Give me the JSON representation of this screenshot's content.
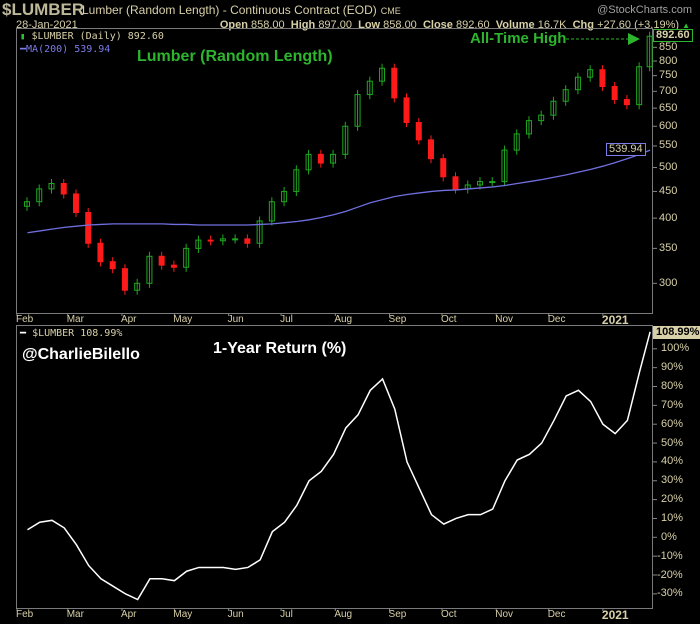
{
  "header": {
    "ticker": "$LUMBER",
    "name": "Lumber (Random Length) - Continuous Contract (EOD)",
    "exchange": "CME",
    "logo": "@StockCharts.com",
    "date": "28-Jan-2021",
    "open_label": "Open",
    "open": "858.00",
    "high_label": "High",
    "high": "897.00",
    "low_label": "Low",
    "low": "858.00",
    "close_label": "Close",
    "close": "892.60",
    "volume_label": "Volume",
    "volume": "16.7K",
    "chg_label": "Chg",
    "chg": "+27.60 (+3.19%)",
    "chg_icon": "triangle-up"
  },
  "upper": {
    "legend_price": "$LUMBER (Daily) 892.60",
    "legend_ma": "MA(200) 539.94",
    "title": "Lumber (Random Length)",
    "annotation": "All-Time High",
    "last_price_tag": "892.60",
    "ma_tag": "539.94"
  },
  "lower": {
    "legend": "$LUMBER 108.99%",
    "handle": "@CharlieBilello",
    "title": "1-Year Return (%)",
    "last_tag": "108.99%"
  },
  "colors": {
    "up": "#1fa81f",
    "down": "#ff1a1a",
    "ma": "#6f6fe0",
    "return_line": "#ffffff",
    "annotation": "#2db52d",
    "text": "#d8d0a8"
  },
  "months": [
    "Feb",
    "Mar",
    "Apr",
    "May",
    "Jun",
    "Jul",
    "Aug",
    "Sep",
    "Oct",
    "Nov",
    "Dec",
    "2021"
  ],
  "chart_data": [
    {
      "type": "candlestick",
      "scale": "log",
      "ylim": [
        270,
        900
      ],
      "yticks": [
        300,
        350,
        400,
        450,
        500,
        550,
        600,
        650,
        700,
        750,
        800,
        850
      ],
      "dates": [
        "2020-02-07",
        "2020-02-14",
        "2020-02-21",
        "2020-02-28",
        "2020-03-06",
        "2020-03-13",
        "2020-03-20",
        "2020-03-27",
        "2020-04-03",
        "2020-04-10",
        "2020-04-17",
        "2020-04-24",
        "2020-05-01",
        "2020-05-08",
        "2020-05-15",
        "2020-05-22",
        "2020-05-29",
        "2020-06-05",
        "2020-06-12",
        "2020-06-19",
        "2020-06-26",
        "2020-07-03",
        "2020-07-10",
        "2020-07-17",
        "2020-07-24",
        "2020-07-31",
        "2020-08-07",
        "2020-08-14",
        "2020-08-21",
        "2020-08-28",
        "2020-09-04",
        "2020-09-11",
        "2020-09-18",
        "2020-09-25",
        "2020-10-02",
        "2020-10-09",
        "2020-10-16",
        "2020-10-23",
        "2020-10-30",
        "2020-11-06",
        "2020-11-13",
        "2020-11-20",
        "2020-11-27",
        "2020-12-04",
        "2020-12-11",
        "2020-12-18",
        "2020-12-25",
        "2021-01-01",
        "2021-01-08",
        "2021-01-15",
        "2021-01-22",
        "2021-01-28"
      ],
      "series": [
        {
          "name": "$LUMBER (Daily)",
          "values": [
            430,
            455,
            466,
            445,
            410,
            358,
            330,
            320,
            291,
            300,
            338,
            325,
            322,
            350,
            363,
            362,
            365,
            365,
            358,
            395,
            430,
            450,
            495,
            530,
            510,
            530,
            600,
            690,
            732,
            775,
            680,
            610,
            565,
            520,
            480,
            455,
            463,
            470,
            470,
            540,
            580,
            615,
            630,
            670,
            705,
            745,
            770,
            715,
            675,
            660,
            780,
            892.6
          ]
        },
        {
          "name": "MA(200)",
          "values": [
            375,
            378,
            381,
            384,
            386,
            388,
            389,
            390,
            390,
            390,
            390,
            390,
            389,
            389,
            388,
            388,
            388,
            388,
            388,
            389,
            390,
            392,
            394,
            397,
            401,
            406,
            412,
            420,
            428,
            434,
            440,
            444,
            447,
            450,
            452,
            453,
            455,
            457,
            459,
            462,
            466,
            470,
            474,
            479,
            484,
            490,
            496,
            503,
            511,
            520,
            530,
            539.94
          ]
        }
      ]
    },
    {
      "type": "line",
      "title": "1-Year Return (%)",
      "ylim": [
        -35,
        112
      ],
      "yticks": [
        -30,
        -20,
        -10,
        0,
        10,
        20,
        30,
        40,
        50,
        60,
        70,
        80,
        90,
        100
      ],
      "series": [
        {
          "name": "$LUMBER",
          "values": [
            4,
            8,
            9,
            5,
            -4,
            -15,
            -22,
            -26,
            -30,
            -33,
            -22,
            -22,
            -23,
            -18,
            -16,
            -16,
            -16,
            -17,
            -16,
            -12,
            3,
            8,
            17,
            30,
            35,
            44,
            58,
            65,
            78,
            84,
            68,
            40,
            26,
            12,
            7,
            10,
            12,
            12,
            15,
            30,
            41,
            44,
            50,
            62,
            75,
            78,
            72,
            60,
            55,
            62,
            88,
            108.99
          ]
        }
      ]
    }
  ]
}
